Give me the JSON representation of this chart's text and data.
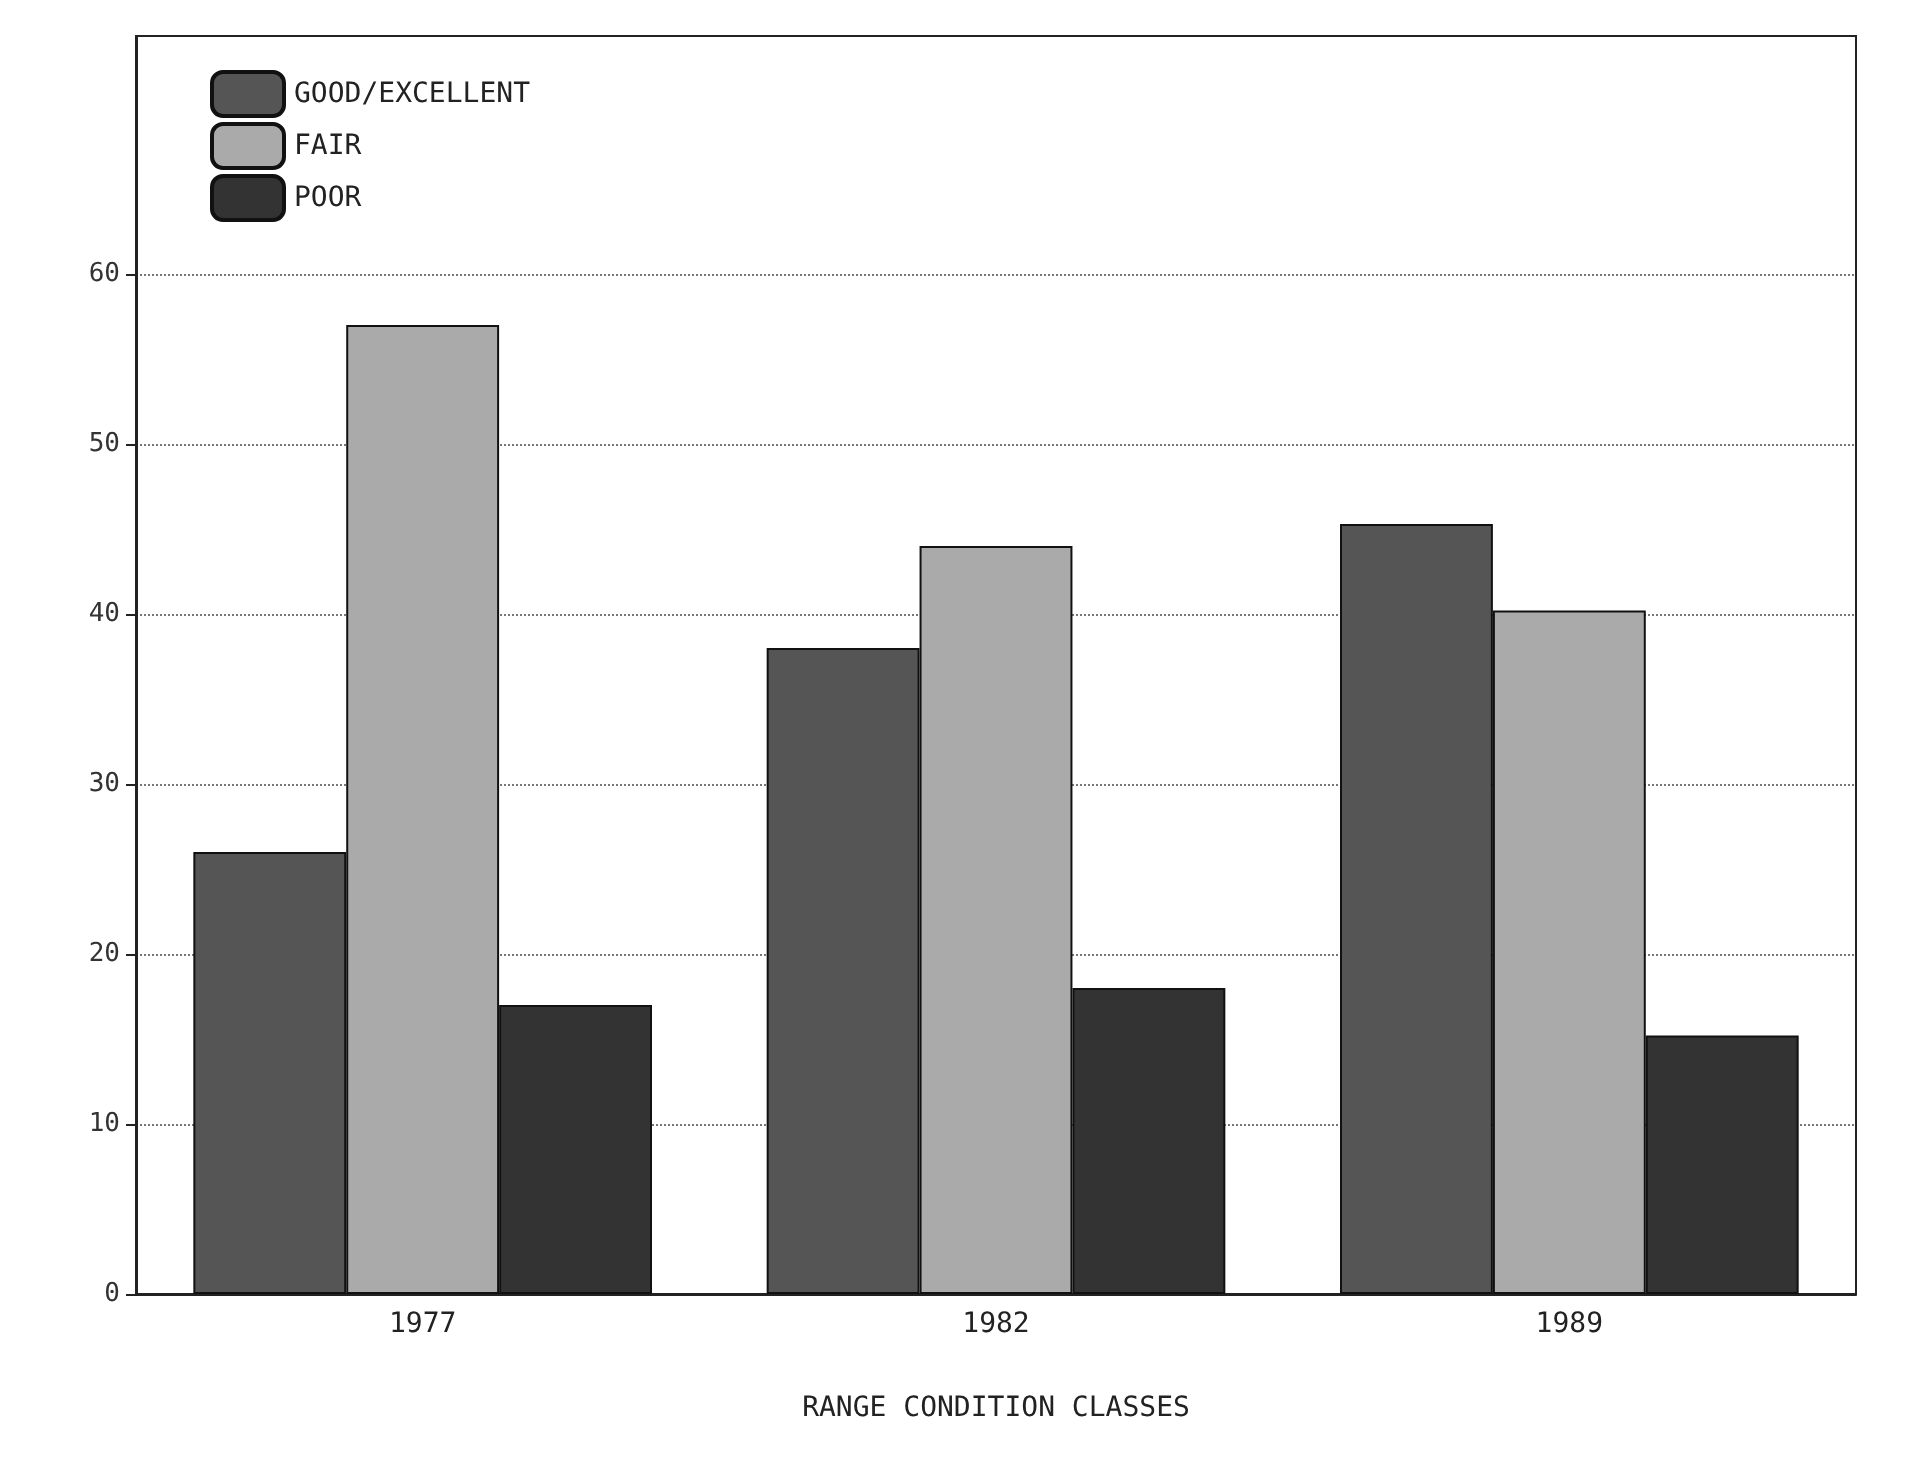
{
  "chart_data": {
    "type": "bar",
    "xlabel": "RANGE CONDITION CLASSES",
    "categories": [
      "1977",
      "1982",
      "1989"
    ],
    "series": [
      {
        "name": "GOOD/EXCELLENT",
        "color": "#555555",
        "values": [
          26,
          38,
          45.3
        ]
      },
      {
        "name": "FAIR",
        "color": "#aaaaaa",
        "values": [
          57,
          44,
          40.2
        ]
      },
      {
        "name": "POOR",
        "color": "#333333",
        "values": [
          17,
          18,
          15.2
        ]
      }
    ],
    "ylim": [
      0,
      74
    ],
    "yticks": [
      0,
      10,
      20,
      30,
      40,
      50,
      60
    ],
    "grid": "y",
    "legend": "top left"
  }
}
